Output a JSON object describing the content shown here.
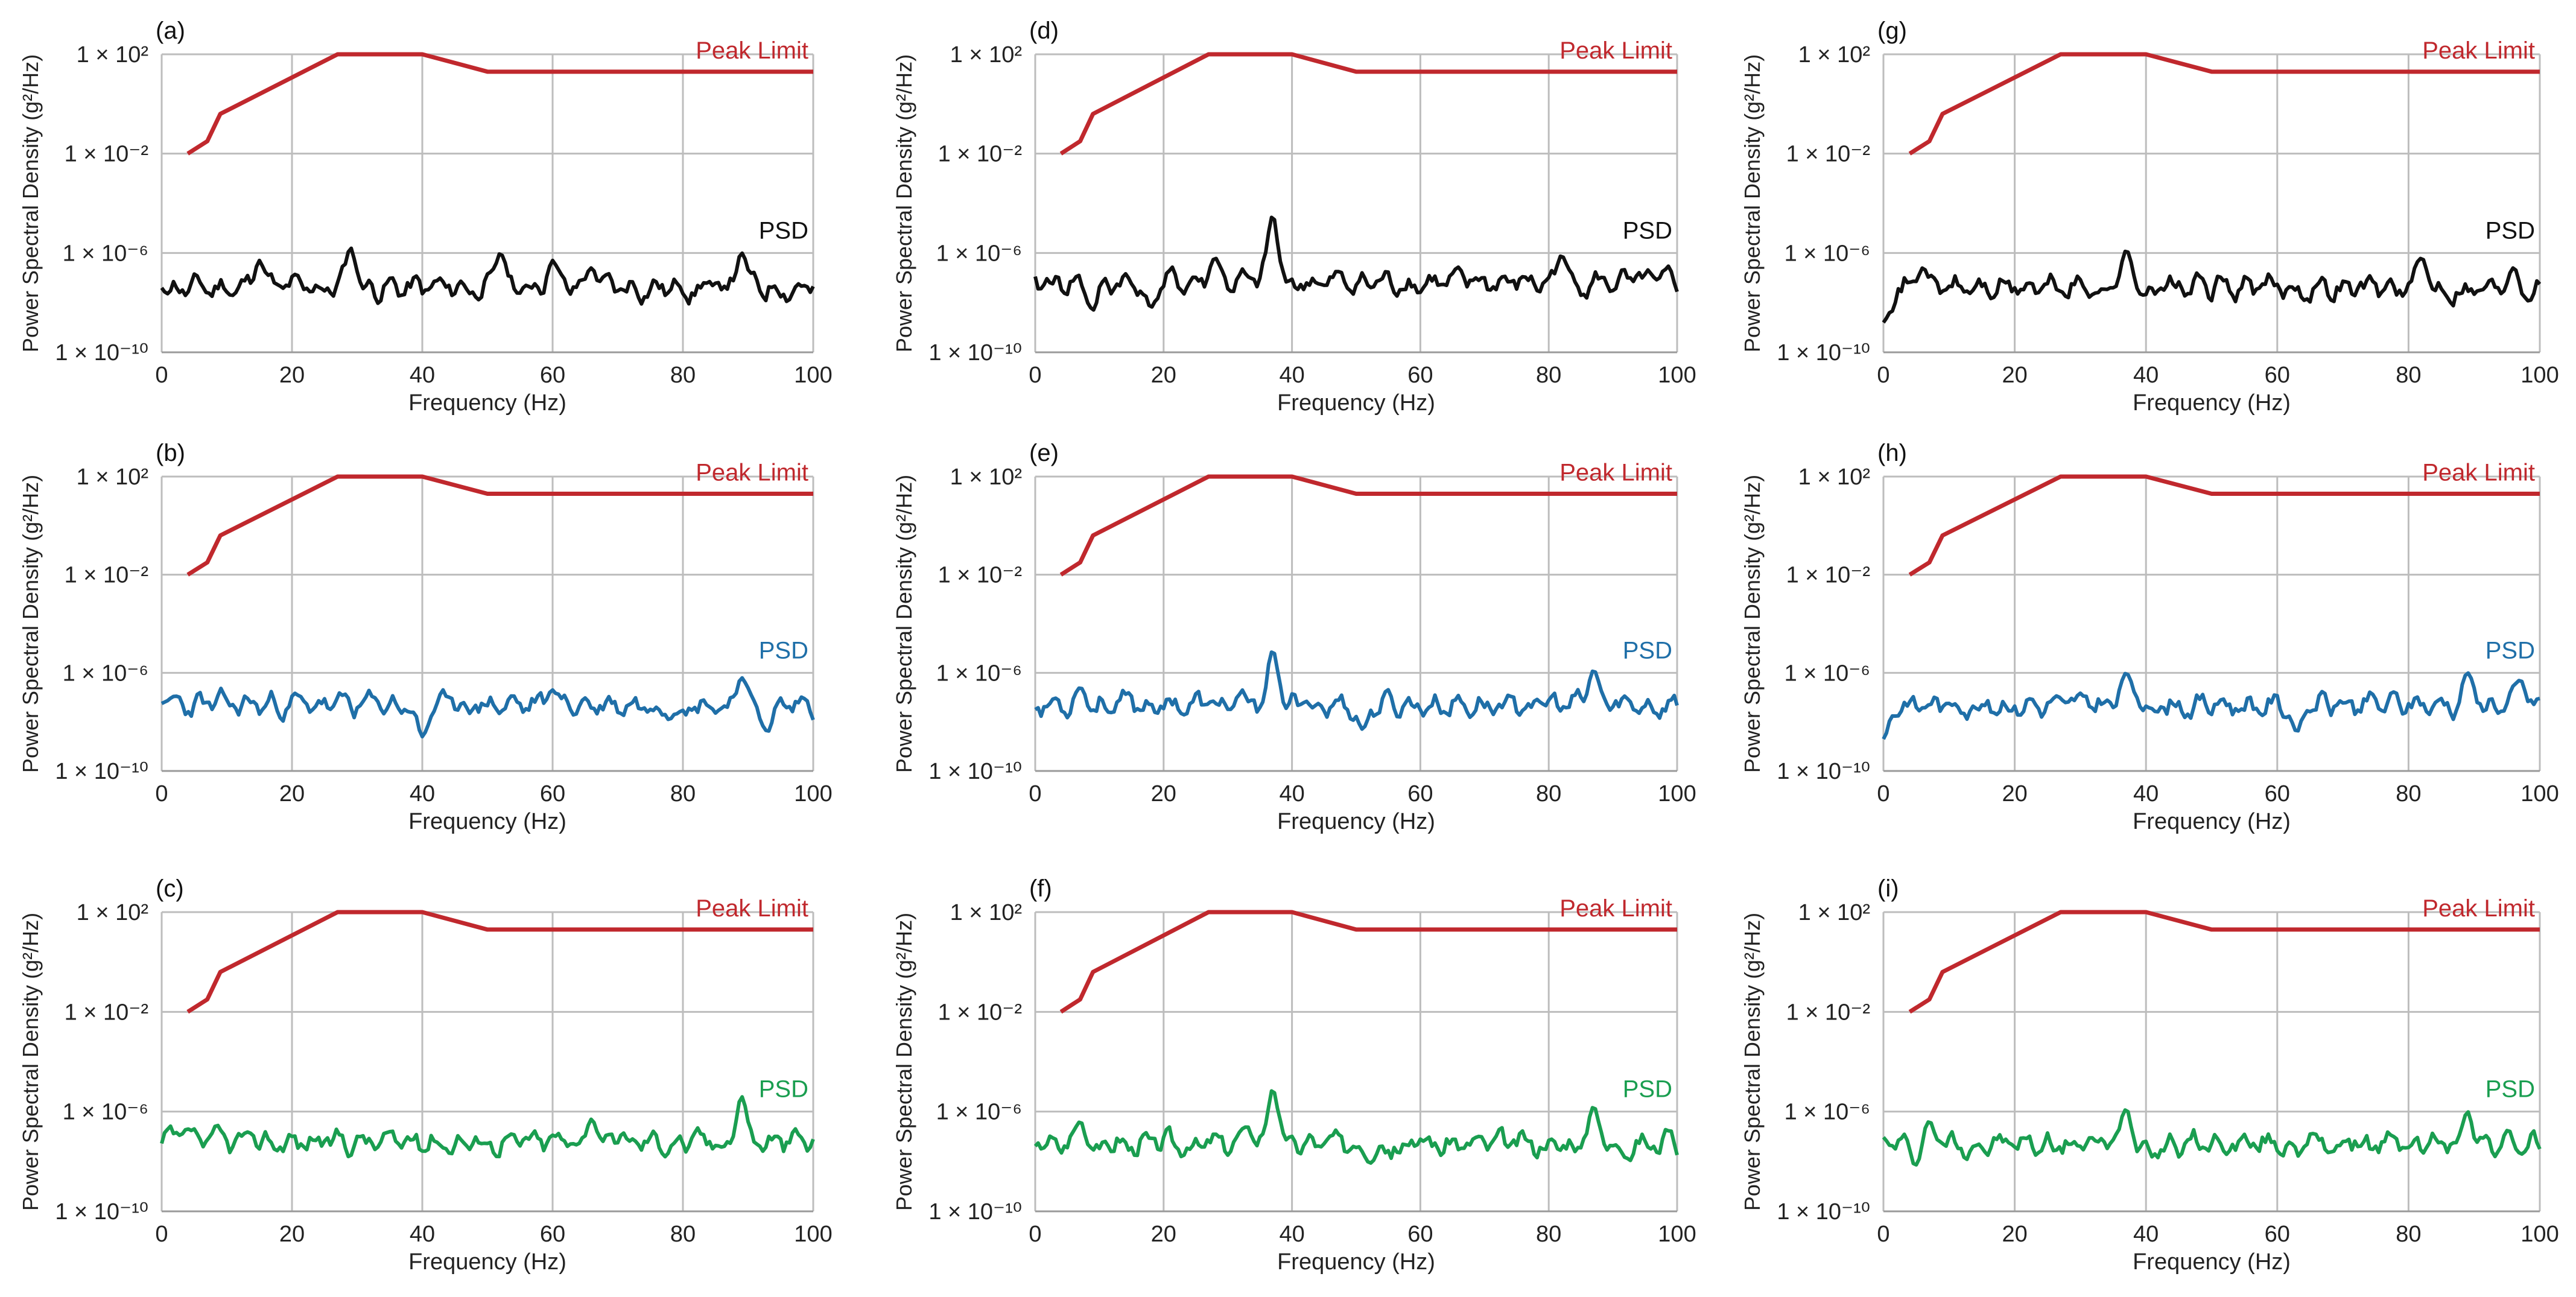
{
  "chart_data": [
    {
      "panel": "(a)",
      "type": "line",
      "xlabel": "Frequency (Hz)",
      "ylabel": "Power Spectral Density (g²/Hz)",
      "xlim": [
        0,
        100
      ],
      "xticks": [
        "0",
        "20",
        "40",
        "60",
        "80",
        "100"
      ],
      "yscale": "log",
      "ylim_exp": [
        -10,
        2
      ],
      "yticks": [
        "1 × 10²",
        "1 × 10⁻²",
        "1 × 10⁻⁶",
        "1 × 10⁻¹⁰"
      ],
      "series": [
        {
          "name": "Peak Limit",
          "color": "#c0282d",
          "x": [
            4,
            7,
            9,
            27,
            40,
            50,
            100
          ],
          "log10_y": [
            -2,
            -1.5,
            -0.4,
            2.0,
            2.0,
            1.3,
            1.3
          ]
        },
        {
          "name": "PSD",
          "color": "#111111",
          "seed": 11,
          "baseline": -7.4,
          "peaks": [
            [
              15,
              -6.3
            ],
            [
              29,
              -5.8
            ],
            [
              52,
              -6.0
            ],
            [
              60,
              -6.3
            ],
            [
              66,
              -6.6
            ],
            [
              89,
              -6.0
            ]
          ]
        }
      ]
    },
    {
      "panel": "(b)",
      "type": "line",
      "xlabel": "Frequency (Hz)",
      "ylabel": "Power Spectral Density (g²/Hz)",
      "xlim": [
        0,
        100
      ],
      "xticks": [
        "0",
        "20",
        "40",
        "60",
        "80",
        "100"
      ],
      "yscale": "log",
      "ylim_exp": [
        -10,
        2
      ],
      "yticks": [
        "1 × 10²",
        "1 × 10⁻²",
        "1 × 10⁻⁶",
        "1 × 10⁻¹⁰"
      ],
      "series": [
        {
          "name": "Peak Limit",
          "color": "#c0282d",
          "x": [
            4,
            7,
            9,
            27,
            40,
            50,
            100
          ],
          "log10_y": [
            -2,
            -1.5,
            -0.4,
            2.0,
            2.0,
            1.3,
            1.3
          ]
        },
        {
          "name": "PSD",
          "color": "#1f6fa8",
          "seed": 23,
          "baseline": -7.3,
          "peaks": [
            [
              40,
              -8.6
            ],
            [
              60,
              -6.7
            ],
            [
              89,
              -6.2
            ],
            [
              93,
              -8.4
            ]
          ]
        }
      ]
    },
    {
      "panel": "(c)",
      "type": "line",
      "xlabel": "Frequency (Hz)",
      "ylabel": "Power Spectral Density (g²/Hz)",
      "xlim": [
        0,
        100
      ],
      "xticks": [
        "0",
        "20",
        "40",
        "60",
        "80",
        "100"
      ],
      "yscale": "log",
      "ylim_exp": [
        -10,
        2
      ],
      "yticks": [
        "1 × 10²",
        "1 × 10⁻²",
        "1 × 10⁻⁶",
        "1 × 10⁻¹⁰"
      ],
      "series": [
        {
          "name": "Peak Limit",
          "color": "#c0282d",
          "x": [
            4,
            7,
            9,
            27,
            40,
            50,
            100
          ],
          "log10_y": [
            -2,
            -1.5,
            -0.4,
            2.0,
            2.0,
            1.3,
            1.3
          ]
        },
        {
          "name": "PSD",
          "color": "#1a9e50",
          "seed": 37,
          "baseline": -7.2,
          "peaks": [
            [
              4,
              -6.7
            ],
            [
              66,
              -6.3
            ],
            [
              89,
              -5.4
            ]
          ]
        }
      ]
    },
    {
      "panel": "(d)",
      "type": "line",
      "xlabel": "Frequency (Hz)",
      "ylabel": "Power Spectral Density (g²/Hz)",
      "xlim": [
        0,
        100
      ],
      "xticks": [
        "0",
        "20",
        "40",
        "60",
        "80",
        "100"
      ],
      "yscale": "log",
      "ylim_exp": [
        -10,
        2
      ],
      "yticks": [
        "1 × 10²",
        "1 × 10⁻²",
        "1 × 10⁻⁶",
        "1 × 10⁻¹⁰"
      ],
      "series": [
        {
          "name": "Peak Limit",
          "color": "#c0282d",
          "x": [
            4,
            7,
            9,
            27,
            40,
            50,
            100
          ],
          "log10_y": [
            -2,
            -1.5,
            -0.4,
            2.0,
            2.0,
            1.3,
            1.3
          ]
        },
        {
          "name": "PSD",
          "color": "#111111",
          "seed": 41,
          "baseline": -7.2,
          "peaks": [
            [
              9,
              -8.3
            ],
            [
              18,
              -8.2
            ],
            [
              28,
              -6.2
            ],
            [
              37,
              -4.5
            ],
            [
              82,
              -6.1
            ]
          ]
        }
      ]
    },
    {
      "panel": "(e)",
      "type": "line",
      "xlabel": "Frequency (Hz)",
      "ylabel": "Power Spectral Density (g²/Hz)",
      "xlim": [
        0,
        100
      ],
      "xticks": [
        "0",
        "20",
        "40",
        "60",
        "80",
        "100"
      ],
      "yscale": "log",
      "ylim_exp": [
        -10,
        2
      ],
      "yticks": [
        "1 × 10²",
        "1 × 10⁻²",
        "1 × 10⁻⁶",
        "1 × 10⁻¹⁰"
      ],
      "series": [
        {
          "name": "Peak Limit",
          "color": "#c0282d",
          "x": [
            4,
            7,
            9,
            27,
            40,
            50,
            100
          ],
          "log10_y": [
            -2,
            -1.5,
            -0.4,
            2.0,
            2.0,
            1.3,
            1.3
          ]
        },
        {
          "name": "PSD",
          "color": "#1f6fa8",
          "seed": 53,
          "baseline": -7.3,
          "peaks": [
            [
              7,
              -6.6
            ],
            [
              37,
              -5.1
            ],
            [
              51,
              -8.3
            ],
            [
              87,
              -5.9
            ]
          ]
        }
      ]
    },
    {
      "panel": "(f)",
      "type": "line",
      "xlabel": "Frequency (Hz)",
      "ylabel": "Power Spectral Density (g²/Hz)",
      "xlim": [
        0,
        100
      ],
      "xticks": [
        "0",
        "20",
        "40",
        "60",
        "80",
        "100"
      ],
      "yscale": "log",
      "ylim_exp": [
        -10,
        2
      ],
      "yticks": [
        "1 × 10²",
        "1 × 10⁻²",
        "1 × 10⁻⁶",
        "1 × 10⁻¹⁰"
      ],
      "series": [
        {
          "name": "Peak Limit",
          "color": "#c0282d",
          "x": [
            4,
            7,
            9,
            27,
            40,
            50,
            100
          ],
          "log10_y": [
            -2,
            -1.5,
            -0.4,
            2.0,
            2.0,
            1.3,
            1.3
          ]
        },
        {
          "name": "PSD",
          "color": "#1a9e50",
          "seed": 67,
          "baseline": -7.3,
          "peaks": [
            [
              7,
              -6.4
            ],
            [
              33,
              -6.6
            ],
            [
              37,
              -5.1
            ],
            [
              87,
              -5.8
            ]
          ]
        }
      ]
    },
    {
      "panel": "(g)",
      "type": "line",
      "xlabel": "Frequency (Hz)",
      "ylabel": "Power Spectral Density (g²/Hz)",
      "xlim": [
        0,
        100
      ],
      "xticks": [
        "0",
        "20",
        "40",
        "60",
        "80",
        "100"
      ],
      "yscale": "log",
      "ylim_exp": [
        -10,
        2
      ],
      "yticks": [
        "1 × 10²",
        "1 × 10⁻²",
        "1 × 10⁻⁶",
        "1 × 10⁻¹⁰"
      ],
      "series": [
        {
          "name": "Peak Limit",
          "color": "#c0282d",
          "x": [
            4,
            7,
            9,
            27,
            40,
            50,
            100
          ],
          "log10_y": [
            -2,
            -1.5,
            -0.4,
            2.0,
            2.0,
            1.3,
            1.3
          ]
        },
        {
          "name": "PSD",
          "color": "#111111",
          "seed": 71,
          "baseline": -7.4,
          "peaks": [
            [
              0,
              -8.8
            ],
            [
              6,
              -6.6
            ],
            [
              37,
              -5.9
            ],
            [
              82,
              -6.2
            ],
            [
              96,
              -6.6
            ]
          ]
        }
      ]
    },
    {
      "panel": "(h)",
      "type": "line",
      "xlabel": "Frequency (Hz)",
      "ylabel": "Power Spectral Density (g²/Hz)",
      "xlim": [
        0,
        100
      ],
      "xticks": [
        "0",
        "20",
        "40",
        "60",
        "80",
        "100"
      ],
      "yscale": "log",
      "ylim_exp": [
        -10,
        2
      ],
      "yticks": [
        "1 × 10²",
        "1 × 10⁻²",
        "1 × 10⁻⁶",
        "1 × 10⁻¹⁰"
      ],
      "series": [
        {
          "name": "Peak Limit",
          "color": "#c0282d",
          "x": [
            4,
            7,
            9,
            27,
            40,
            50,
            100
          ],
          "log10_y": [
            -2,
            -1.5,
            -0.4,
            2.0,
            2.0,
            1.3,
            1.3
          ]
        },
        {
          "name": "PSD",
          "color": "#1f6fa8",
          "seed": 83,
          "baseline": -7.3,
          "peaks": [
            [
              0,
              -8.7
            ],
            [
              37,
              -6.0
            ],
            [
              63,
              -8.4
            ],
            [
              89,
              -6.0
            ],
            [
              97,
              -6.3
            ]
          ]
        }
      ]
    },
    {
      "panel": "(i)",
      "type": "line",
      "xlabel": "Frequency (Hz)",
      "ylabel": "Power Spectral Density (g²/Hz)",
      "xlim": [
        0,
        100
      ],
      "xticks": [
        "0",
        "20",
        "40",
        "60",
        "80",
        "100"
      ],
      "yscale": "log",
      "ylim_exp": [
        -10,
        2
      ],
      "yticks": [
        "1 × 10²",
        "1 × 10⁻²",
        "1 × 10⁻⁶",
        "1 × 10⁻¹⁰"
      ],
      "series": [
        {
          "name": "Peak Limit",
          "color": "#c0282d",
          "x": [
            4,
            7,
            9,
            27,
            40,
            50,
            100
          ],
          "log10_y": [
            -2,
            -1.5,
            -0.4,
            2.0,
            2.0,
            1.3,
            1.3
          ]
        },
        {
          "name": "PSD",
          "color": "#1a9e50",
          "seed": 97,
          "baseline": -7.3,
          "peaks": [
            [
              5,
              -8.2
            ],
            [
              7,
              -6.4
            ],
            [
              37,
              -5.9
            ],
            [
              89,
              -6.0
            ]
          ]
        }
      ]
    }
  ]
}
